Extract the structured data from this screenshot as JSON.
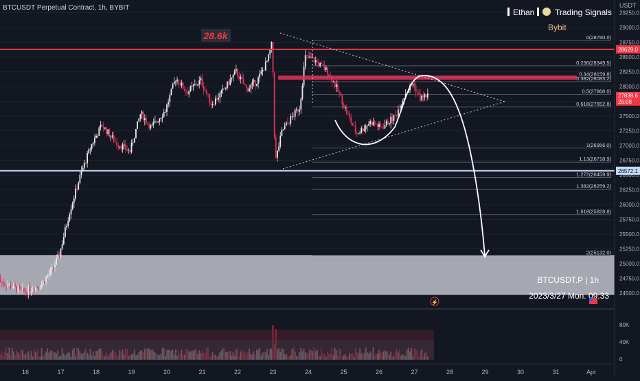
{
  "header": {
    "symbol_title": "BTCUSDT Perpetual Contract, 1h, BYBIT",
    "currency": "USDT",
    "author": "Ethan",
    "channel": "Trading Signals",
    "exchange": "Bybit"
  },
  "annotations": {
    "resistance_label": "28.6k",
    "watermark_symbol": "BTCUSDT.P  |  1h",
    "watermark_datetime": "2023/3/27 Mon. 09:33"
  },
  "price_tags": {
    "resistance": "28629.0",
    "last_price": "27838.6",
    "countdown": "26:08",
    "support": "26572.1"
  },
  "colors": {
    "background": "#131722",
    "up_candle": "#e8e8e8",
    "down_candle": "#e0325b",
    "resistance_line": "#f23645",
    "support_line": "#bfd9f5",
    "zone": "#b2b5be",
    "axis_text": "#b2b5be"
  },
  "chart_data": {
    "type": "candlestick",
    "x_ticks": [
      "16",
      "17",
      "18",
      "19",
      "20",
      "21",
      "22",
      "23",
      "24",
      "25",
      "26",
      "27",
      "28",
      "29",
      "30",
      "31",
      "Apr"
    ],
    "y_ticks": [
      "29250.0",
      "29000.0",
      "28750.0",
      "28500.0",
      "28250.0",
      "28000.0",
      "27750.0",
      "27500.0",
      "27250.0",
      "27000.0",
      "26750.0",
      "26500.0",
      "26250.0",
      "26000.0",
      "25750.0",
      "25500.0",
      "25250.0",
      "25000.0",
      "24750.0",
      "24500.0"
    ],
    "ylim": [
      24400,
      29300
    ],
    "volume_ticks": [
      "80K",
      "40K",
      "0"
    ],
    "fibonacci": [
      {
        "label": "0(28780.0)",
        "price": 28780.0
      },
      {
        "label": "0.236(28349.5)",
        "price": 28349.5
      },
      {
        "label": "0.34(28159.8)",
        "price": 28159.8
      },
      {
        "label": "0.382(28083.2)",
        "price": 28083.2
      },
      {
        "label": "0.5(27868.0)",
        "price": 27868.0
      },
      {
        "label": "0.618(27652.8)",
        "price": 27652.8
      },
      {
        "label": "1(26956.0)",
        "price": 26956.0
      },
      {
        "label": "1.13(26718.9)",
        "price": 26718.9
      },
      {
        "label": "1.272(26459.9)",
        "price": 26459.9
      },
      {
        "label": "1.382(26259.2)",
        "price": 26259.2
      },
      {
        "label": "1.618(25828.8)",
        "price": 25828.8
      },
      {
        "label": "2(25132.0)",
        "price": 25132.0
      }
    ],
    "resistance": 28629.0,
    "support": 26572.1,
    "last_price": 27838.6,
    "target_zone": [
      24480,
      25132
    ],
    "resistance_zone": [
      28115,
      28185
    ],
    "trend": [
      {
        "d": 15.0,
        "p": 24780
      },
      {
        "d": 15.5,
        "p": 24650
      },
      {
        "d": 16.0,
        "p": 24520
      },
      {
        "d": 16.5,
        "p": 24650
      },
      {
        "d": 16.8,
        "p": 24900
      },
      {
        "d": 17.0,
        "p": 25150
      },
      {
        "d": 17.3,
        "p": 25900
      },
      {
        "d": 17.6,
        "p": 26500
      },
      {
        "d": 17.9,
        "p": 27000
      },
      {
        "d": 18.2,
        "p": 27350
      },
      {
        "d": 18.6,
        "p": 27050
      },
      {
        "d": 19.0,
        "p": 26900
      },
      {
        "d": 19.3,
        "p": 27550
      },
      {
        "d": 19.6,
        "p": 27300
      },
      {
        "d": 20.0,
        "p": 27600
      },
      {
        "d": 20.3,
        "p": 28150
      },
      {
        "d": 20.6,
        "p": 27900
      },
      {
        "d": 21.0,
        "p": 28100
      },
      {
        "d": 21.3,
        "p": 27700
      },
      {
        "d": 21.6,
        "p": 27900
      },
      {
        "d": 22.0,
        "p": 28250
      },
      {
        "d": 22.3,
        "p": 27950
      },
      {
        "d": 22.6,
        "p": 28100
      },
      {
        "d": 22.9,
        "p": 28450
      },
      {
        "d": 23.0,
        "p": 28700
      },
      {
        "d": 23.05,
        "p": 28150
      },
      {
        "d": 23.1,
        "p": 26700
      },
      {
        "d": 23.3,
        "p": 27250
      },
      {
        "d": 23.6,
        "p": 27500
      },
      {
        "d": 23.8,
        "p": 27650
      },
      {
        "d": 23.95,
        "p": 28500
      },
      {
        "d": 24.2,
        "p": 28450
      },
      {
        "d": 24.6,
        "p": 28250
      },
      {
        "d": 24.9,
        "p": 27900
      },
      {
        "d": 25.1,
        "p": 27600
      },
      {
        "d": 25.4,
        "p": 27200
      },
      {
        "d": 25.8,
        "p": 27400
      },
      {
        "d": 26.1,
        "p": 27300
      },
      {
        "d": 26.5,
        "p": 27500
      },
      {
        "d": 26.8,
        "p": 27900
      },
      {
        "d": 27.0,
        "p": 28050
      },
      {
        "d": 27.2,
        "p": 27800
      },
      {
        "d": 27.4,
        "p": 27850
      }
    ]
  }
}
